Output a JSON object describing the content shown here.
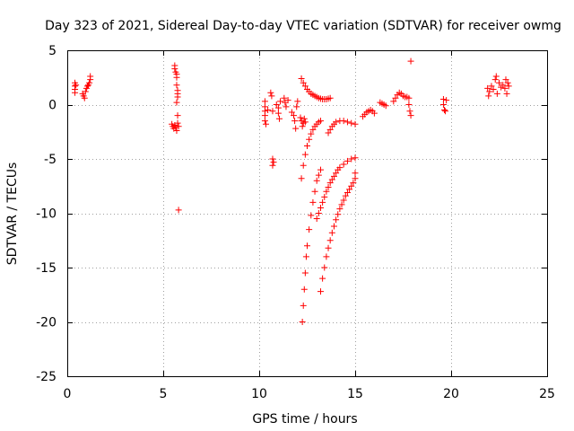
{
  "chart_data": {
    "type": "scatter",
    "title": "Day 323 of 2021, Sidereal Day-to-day VTEC variation (SDTVAR) for receiver owmg",
    "xlabel": "GPS time / hours",
    "ylabel": "SDTVAR / TECUs",
    "xlim": [
      0,
      25
    ],
    "ylim": [
      -25,
      5
    ],
    "xticks": [
      0,
      5,
      10,
      15,
      20,
      25
    ],
    "yticks": [
      -25,
      -20,
      -15,
      -10,
      -5,
      0,
      5
    ],
    "grid": true,
    "marker": "+",
    "color": "#ff0000",
    "series": [
      {
        "name": "SDTVAR",
        "points": [
          [
            0.4,
            2.0
          ],
          [
            0.4,
            1.7
          ],
          [
            0.4,
            1.4
          ],
          [
            0.4,
            1.1
          ],
          [
            0.45,
            1.8
          ],
          [
            0.8,
            1.0
          ],
          [
            0.85,
            0.8
          ],
          [
            0.9,
            0.6
          ],
          [
            0.95,
            1.2
          ],
          [
            1.0,
            1.5
          ],
          [
            1.05,
            1.7
          ],
          [
            1.1,
            1.8
          ],
          [
            1.15,
            2.0
          ],
          [
            1.2,
            2.3
          ],
          [
            1.2,
            2.6
          ],
          [
            5.6,
            3.6
          ],
          [
            5.6,
            3.3
          ],
          [
            5.65,
            3.0
          ],
          [
            5.7,
            2.8
          ],
          [
            5.7,
            2.5
          ],
          [
            5.7,
            1.8
          ],
          [
            5.75,
            1.3
          ],
          [
            5.75,
            1.0
          ],
          [
            5.75,
            0.7
          ],
          [
            5.7,
            0.2
          ],
          [
            5.75,
            -1.0
          ],
          [
            5.45,
            -1.8
          ],
          [
            5.5,
            -2.0
          ],
          [
            5.55,
            -2.2
          ],
          [
            5.6,
            -1.9
          ],
          [
            5.65,
            -2.1
          ],
          [
            5.7,
            -2.4
          ],
          [
            5.75,
            -1.7
          ],
          [
            5.8,
            -2.0
          ],
          [
            5.8,
            -9.7
          ],
          [
            10.3,
            0.3
          ],
          [
            10.3,
            -0.2
          ],
          [
            10.3,
            -0.6
          ],
          [
            10.3,
            -1.0
          ],
          [
            10.3,
            -1.5
          ],
          [
            10.35,
            -1.8
          ],
          [
            10.45,
            -0.5
          ],
          [
            10.6,
            1.1
          ],
          [
            10.65,
            0.8
          ],
          [
            10.7,
            -0.6
          ],
          [
            10.7,
            -5.0
          ],
          [
            10.75,
            -5.3
          ],
          [
            10.7,
            -5.6
          ],
          [
            10.9,
            0.0
          ],
          [
            11.0,
            -0.3
          ],
          [
            11.0,
            -0.8
          ],
          [
            11.05,
            -1.3
          ],
          [
            11.1,
            0.3
          ],
          [
            11.3,
            0.6
          ],
          [
            11.35,
            0.2
          ],
          [
            11.4,
            -0.2
          ],
          [
            11.5,
            0.4
          ],
          [
            11.7,
            -0.7
          ],
          [
            11.8,
            -1.0
          ],
          [
            11.85,
            -1.5
          ],
          [
            11.9,
            -2.2
          ],
          [
            11.95,
            -0.2
          ],
          [
            12.0,
            0.3
          ],
          [
            12.15,
            -1.2
          ],
          [
            12.2,
            -1.5
          ],
          [
            12.25,
            -2.0
          ],
          [
            12.3,
            -1.7
          ],
          [
            12.35,
            -1.3
          ],
          [
            12.4,
            -1.6
          ],
          [
            12.2,
            2.4
          ],
          [
            12.3,
            2.0
          ],
          [
            12.4,
            1.7
          ],
          [
            12.5,
            1.4
          ],
          [
            12.6,
            1.2
          ],
          [
            12.7,
            1.0
          ],
          [
            12.8,
            0.9
          ],
          [
            12.9,
            0.8
          ],
          [
            13.0,
            0.7
          ],
          [
            13.1,
            0.6
          ],
          [
            13.2,
            0.55
          ],
          [
            13.3,
            0.5
          ],
          [
            13.4,
            0.5
          ],
          [
            13.5,
            0.5
          ],
          [
            13.6,
            0.55
          ],
          [
            13.7,
            0.6
          ],
          [
            12.2,
            -6.8
          ],
          [
            12.3,
            -5.6
          ],
          [
            12.4,
            -4.6
          ],
          [
            12.5,
            -3.8
          ],
          [
            12.6,
            -3.2
          ],
          [
            12.7,
            -2.7
          ],
          [
            12.8,
            -2.3
          ],
          [
            12.9,
            -2.0
          ],
          [
            13.0,
            -1.8
          ],
          [
            13.1,
            -1.6
          ],
          [
            13.2,
            -1.5
          ],
          [
            12.25,
            -20.0
          ],
          [
            12.3,
            -18.5
          ],
          [
            12.35,
            -17.0
          ],
          [
            12.4,
            -15.5
          ],
          [
            12.45,
            -14.0
          ],
          [
            12.5,
            -13.0
          ],
          [
            12.6,
            -11.5
          ],
          [
            12.7,
            -10.2
          ],
          [
            12.8,
            -9.0
          ],
          [
            12.9,
            -8.0
          ],
          [
            13.0,
            -7.0
          ],
          [
            13.1,
            -6.5
          ],
          [
            13.2,
            -6.0
          ],
          [
            13.0,
            -10.5
          ],
          [
            13.1,
            -10.0
          ],
          [
            13.2,
            -9.5
          ],
          [
            13.3,
            -9.0
          ],
          [
            13.4,
            -8.5
          ],
          [
            13.5,
            -8.0
          ],
          [
            13.6,
            -7.6
          ],
          [
            13.7,
            -7.2
          ],
          [
            13.8,
            -6.9
          ],
          [
            13.9,
            -6.6
          ],
          [
            14.0,
            -6.3
          ],
          [
            14.1,
            -6.0
          ],
          [
            14.2,
            -5.8
          ],
          [
            14.4,
            -5.5
          ],
          [
            14.6,
            -5.2
          ],
          [
            14.8,
            -5.0
          ],
          [
            15.0,
            -4.9
          ],
          [
            13.2,
            -17.2
          ],
          [
            13.3,
            -16.0
          ],
          [
            13.4,
            -15.0
          ],
          [
            13.5,
            -14.0
          ],
          [
            13.6,
            -13.2
          ],
          [
            13.7,
            -12.5
          ],
          [
            13.8,
            -11.8
          ],
          [
            13.9,
            -11.2
          ],
          [
            14.0,
            -10.6
          ],
          [
            14.1,
            -10.1
          ],
          [
            14.2,
            -9.6
          ],
          [
            14.3,
            -9.2
          ],
          [
            14.4,
            -8.8
          ],
          [
            14.5,
            -8.4
          ],
          [
            14.6,
            -8.1
          ],
          [
            14.7,
            -7.8
          ],
          [
            14.8,
            -7.5
          ],
          [
            14.9,
            -7.2
          ],
          [
            15.0,
            -6.8
          ],
          [
            15.0,
            -6.3
          ],
          [
            13.6,
            -2.6
          ],
          [
            13.7,
            -2.3
          ],
          [
            13.8,
            -2.0
          ],
          [
            13.9,
            -1.8
          ],
          [
            14.0,
            -1.6
          ],
          [
            14.2,
            -1.5
          ],
          [
            14.4,
            -1.5
          ],
          [
            14.6,
            -1.6
          ],
          [
            14.8,
            -1.7
          ],
          [
            15.0,
            -1.8
          ],
          [
            15.4,
            -1.1
          ],
          [
            15.5,
            -0.9
          ],
          [
            15.6,
            -0.7
          ],
          [
            15.7,
            -0.6
          ],
          [
            15.8,
            -0.5
          ],
          [
            15.9,
            -0.6
          ],
          [
            16.0,
            -0.8
          ],
          [
            16.3,
            0.2
          ],
          [
            16.4,
            0.1
          ],
          [
            16.5,
            0.0
          ],
          [
            16.6,
            -0.1
          ],
          [
            17.0,
            0.3
          ],
          [
            17.1,
            0.6
          ],
          [
            17.2,
            0.9
          ],
          [
            17.3,
            1.1
          ],
          [
            17.4,
            1.0
          ],
          [
            17.5,
            0.8
          ],
          [
            17.6,
            0.7
          ],
          [
            17.7,
            0.7
          ],
          [
            17.8,
            0.6
          ],
          [
            17.8,
            0.0
          ],
          [
            17.85,
            -0.6
          ],
          [
            17.9,
            -1.0
          ],
          [
            17.9,
            4.0
          ],
          [
            19.6,
            0.5
          ],
          [
            19.6,
            0.0
          ],
          [
            19.65,
            -0.5
          ],
          [
            19.7,
            -0.6
          ],
          [
            19.75,
            0.4
          ],
          [
            21.9,
            1.5
          ],
          [
            21.95,
            0.8
          ],
          [
            22.0,
            1.2
          ],
          [
            22.1,
            1.7
          ],
          [
            22.2,
            1.4
          ],
          [
            22.3,
            2.3
          ],
          [
            22.35,
            2.6
          ],
          [
            22.4,
            1.0
          ],
          [
            22.5,
            2.0
          ],
          [
            22.6,
            1.6
          ],
          [
            22.7,
            1.8
          ],
          [
            22.8,
            1.5
          ],
          [
            22.85,
            2.3
          ],
          [
            22.9,
            1.0
          ],
          [
            22.95,
            2.0
          ],
          [
            23.0,
            1.7
          ]
        ]
      }
    ]
  }
}
